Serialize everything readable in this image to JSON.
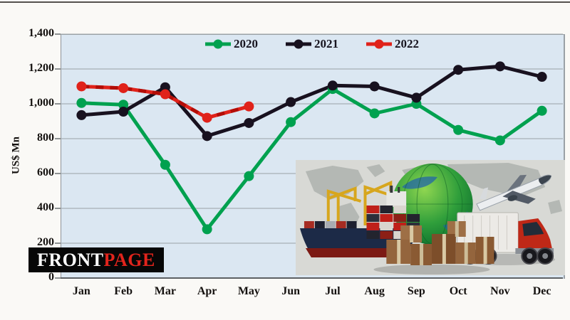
{
  "branding": {
    "front": "FRONT",
    "page": "PAGE"
  },
  "chart_data": {
    "type": "line",
    "title": "",
    "xlabel": "",
    "ylabel": "US$ Mn",
    "categories": [
      "Jan",
      "Feb",
      "Mar",
      "Apr",
      "May",
      "Jun",
      "Jul",
      "Aug",
      "Sep",
      "Oct",
      "Nov",
      "Dec"
    ],
    "series": [
      {
        "name": "2020",
        "color": "#00a14f",
        "style": "solid",
        "values": [
          1005,
          995,
          650,
          280,
          585,
          895,
          1085,
          945,
          1000,
          850,
          790,
          960
        ]
      },
      {
        "name": "2021",
        "color": "#18111f",
        "style": "solid",
        "values": [
          935,
          955,
          1095,
          815,
          890,
          1010,
          1105,
          1100,
          1035,
          1195,
          1215,
          1155
        ]
      },
      {
        "name": "2022",
        "color": "#e0221a",
        "style": "dashed",
        "dash_color": "#b30d07",
        "values": [
          1100,
          1090,
          1055,
          920,
          985,
          null,
          null,
          null,
          null,
          null,
          null,
          null
        ]
      }
    ],
    "ylim": [
      0,
      1400
    ],
    "ytick_step": 200,
    "ytick_labels_top_to_bottom": [
      "1,400",
      "1,200",
      "1,000",
      "800",
      "600",
      "400",
      "200",
      "0"
    ],
    "grid": true,
    "legend_position": "top-center",
    "plot_bg": "#dbe7f2",
    "grid_color": "#9aa1a6"
  },
  "collage_icons": [
    "world-map",
    "globe",
    "cargo-ship",
    "shipping-containers",
    "airplane",
    "truck",
    "cardboard-boxes"
  ]
}
